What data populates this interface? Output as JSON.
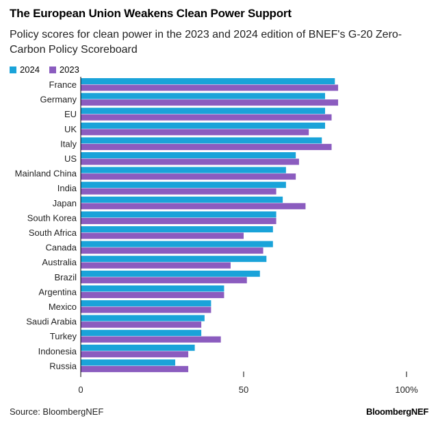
{
  "title": "The European Union Weakens Clean Power Support",
  "subtitle": "Policy scores for clean power in the 2023 and 2024 edition of BNEF's G-20 Zero-Carbon Policy Scoreboard",
  "source": "Source: BloombergNEF",
  "brand": "BloombergNEF",
  "colors": {
    "s2024": "#1aa3d9",
    "s2023": "#8b5cbf",
    "axis": "#000000",
    "grid": "#dddddd"
  },
  "chart_data": {
    "type": "bar",
    "orientation": "horizontal",
    "title": "The European Union Weakens Clean Power Support",
    "xlabel": "",
    "ylabel": "",
    "xlim": [
      0,
      100
    ],
    "x_ticks": [
      0,
      50,
      100
    ],
    "x_tick_labels": [
      "0",
      "50",
      "100%"
    ],
    "legend": "top-left",
    "categories": [
      "France",
      "Germany",
      "EU",
      "UK",
      "Italy",
      "US",
      "Mainland China",
      "India",
      "Japan",
      "South Korea",
      "South Africa",
      "Canada",
      "Australia",
      "Brazil",
      "Argentina",
      "Mexico",
      "Saudi Arabia",
      "Turkey",
      "Indonesia",
      "Russia"
    ],
    "series": [
      {
        "name": "2024",
        "values": [
          78,
          75,
          75,
          75,
          74,
          66,
          63,
          63,
          62,
          60,
          59,
          59,
          57,
          55,
          44,
          40,
          38,
          37,
          35,
          29
        ]
      },
      {
        "name": "2023",
        "values": [
          79,
          79,
          77,
          70,
          77,
          67,
          66,
          60,
          69,
          60,
          50,
          56,
          46,
          51,
          44,
          40,
          37,
          43,
          33,
          33
        ]
      }
    ]
  }
}
